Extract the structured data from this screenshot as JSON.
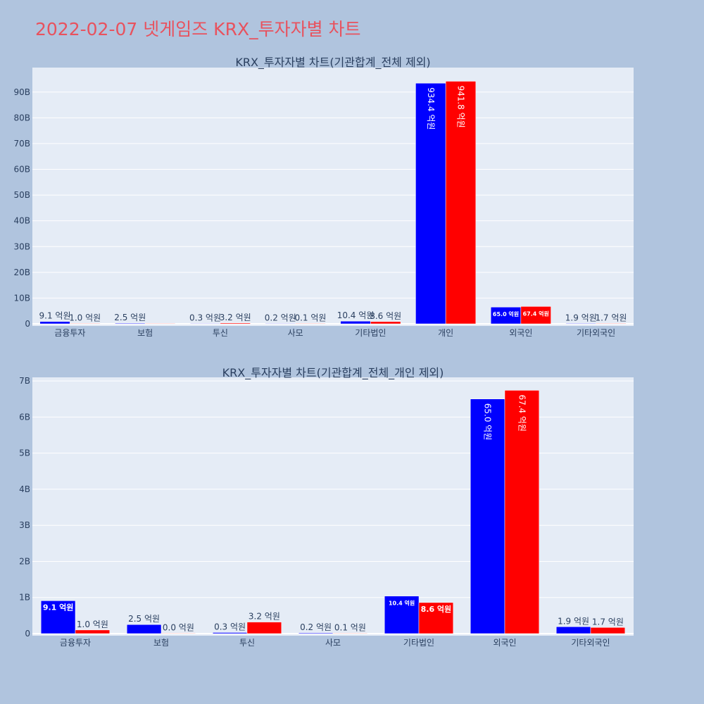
{
  "page_title": "2022-02-07 넷게임즈 KRX_투자자별 차트",
  "colors": {
    "buy": "#0000ff",
    "sell": "#ff0000",
    "plot_bg": "#e5ecf6",
    "page_bg": "#b0c4de",
    "title": "#e8525e"
  },
  "chart_data": [
    {
      "type": "bar",
      "title": "KRX_투자자별 차트(기관합계_전체 제외)",
      "categories": [
        "금융투자",
        "보험",
        "투신",
        "사모",
        "기타법인",
        "개인",
        "외국인",
        "기타외국인"
      ],
      "series": [
        {
          "values": [
            0.91,
            0.25,
            0.03,
            0.02,
            1.04,
            93.44,
            6.5,
            0.19
          ],
          "labels": [
            "9.1 억원",
            "2.5 억원",
            "0.3 억원",
            "0.2 억원",
            "10.4 억원",
            "934.4 억원",
            "65.0 억원",
            "1.9 억원"
          ]
        },
        {
          "values": [
            0.1,
            0.0,
            0.32,
            0.01,
            0.86,
            94.18,
            6.74,
            0.17
          ],
          "labels": [
            "1.0 억원",
            "",
            "3.2 억원",
            "0.1 억원",
            "8.6 억원",
            "941.8 억원",
            "67.4 억원",
            "1.7 억원"
          ]
        }
      ],
      "ylim": [
        0,
        99.5
      ],
      "yticks": [
        0,
        10,
        20,
        30,
        40,
        50,
        60,
        70,
        80,
        90
      ],
      "ytick_labels": [
        "0",
        "10B",
        "20B",
        "30B",
        "40B",
        "50B",
        "60B",
        "70B",
        "80B",
        "90B"
      ],
      "grid": true
    },
    {
      "type": "bar",
      "title": "KRX_투자자별 차트(기관합계_전체_개인 제외)",
      "categories": [
        "금융투자",
        "보험",
        "투신",
        "사모",
        "기타법인",
        "외국인",
        "기타외국인"
      ],
      "series": [
        {
          "values": [
            0.91,
            0.25,
            0.03,
            0.02,
            1.04,
            6.5,
            0.19
          ],
          "labels": [
            "9.1 억원",
            "2.5 억원",
            "0.3 억원",
            "0.2 억원",
            "10.4 억원",
            "65.0 억원",
            "1.9 억원"
          ]
        },
        {
          "values": [
            0.1,
            0.0,
            0.32,
            0.01,
            0.86,
            6.74,
            0.17
          ],
          "labels": [
            "1.0 억원",
            "0.0 억원",
            "3.2 억원",
            "0.1 억원",
            "8.6 억원",
            "67.4 억원",
            "1.7 억원"
          ]
        }
      ],
      "ylim": [
        0,
        7.1
      ],
      "yticks": [
        0,
        1,
        2,
        3,
        4,
        5,
        6,
        7
      ],
      "ytick_labels": [
        "0",
        "1B",
        "2B",
        "3B",
        "4B",
        "5B",
        "6B",
        "7B"
      ],
      "grid": true
    }
  ]
}
